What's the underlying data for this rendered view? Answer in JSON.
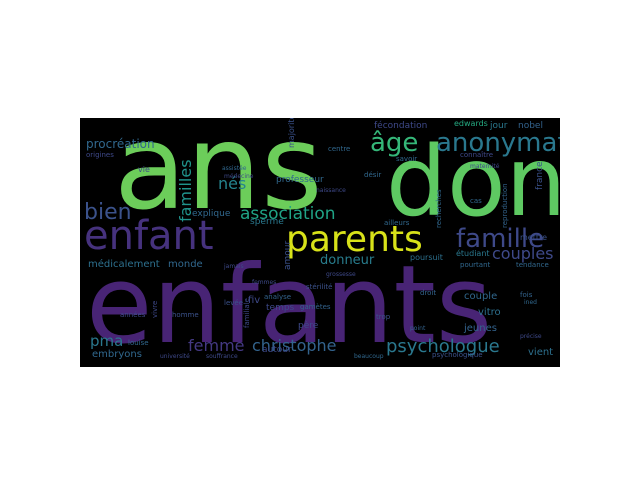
{
  "wordcloud": {
    "colors": {
      "background": "#000000",
      "page": "#ffffff"
    },
    "words": [
      {
        "text": "ans",
        "color": "#6ccd5a"
      },
      {
        "text": "enfants",
        "color": "#482475"
      },
      {
        "text": "don",
        "color": "#5ec962"
      },
      {
        "text": "enfant",
        "color": "#46327e"
      },
      {
        "text": "parents",
        "color": "#d8e219"
      },
      {
        "text": "anonymat",
        "color": "#2a788e"
      },
      {
        "text": "famille",
        "color": "#3e4989"
      },
      {
        "text": "bien",
        "color": "#3b528b"
      },
      {
        "text": "âge",
        "color": "#35b779"
      },
      {
        "text": "association",
        "color": "#20a386"
      },
      {
        "text": "femme",
        "color": "#443983"
      },
      {
        "text": "christophe",
        "color": "#33638d"
      },
      {
        "text": "psychologue",
        "color": "#2a788e"
      },
      {
        "text": "couples",
        "color": "#3e4989"
      },
      {
        "text": "donneur",
        "color": "#287d8e"
      },
      {
        "text": "familles",
        "color": "#20938c"
      },
      {
        "text": "nés",
        "color": "#25848e"
      },
      {
        "text": "pma",
        "color": "#2a788e"
      },
      {
        "text": "procréation",
        "color": "#31688e"
      },
      {
        "text": "médicalement",
        "color": "#2d708e"
      },
      {
        "text": "monde",
        "color": "#31688e"
      },
      {
        "text": "embryons",
        "color": "#31688e"
      },
      {
        "text": "fécondation",
        "color": "#3e4989"
      },
      {
        "text": "edwards",
        "color": "#25ab82"
      },
      {
        "text": "jour",
        "color": "#2a788e"
      },
      {
        "text": "nobel",
        "color": "#33638d"
      },
      {
        "text": "couple",
        "color": "#31688e"
      },
      {
        "text": "vitro",
        "color": "#2d708e"
      },
      {
        "text": "jeunes",
        "color": "#33638d"
      },
      {
        "text": "vient",
        "color": "#2d708e"
      },
      {
        "text": "mettre",
        "color": "#3b528b"
      },
      {
        "text": "professeur",
        "color": "#31688e"
      },
      {
        "text": "explique",
        "color": "#31688e"
      },
      {
        "text": "sperme",
        "color": "#2a788e"
      },
      {
        "text": "amour",
        "color": "#3b528b"
      },
      {
        "text": "fiv",
        "color": "#3e4989"
      },
      {
        "text": "père",
        "color": "#3e4989"
      },
      {
        "text": "temps",
        "color": "#3e4989"
      },
      {
        "text": "autour",
        "color": "#3e4989"
      },
      {
        "text": "poursuit",
        "color": "#2d708e"
      },
      {
        "text": "étudiant",
        "color": "#2a788e"
      },
      {
        "text": "pourtant",
        "color": "#31688e"
      },
      {
        "text": "tendance",
        "color": "#31688e"
      },
      {
        "text": "france",
        "color": "#3b528b"
      },
      {
        "text": "connaître",
        "color": "#3e4989"
      },
      {
        "text": "majorité",
        "color": "#3b528b"
      },
      {
        "text": "ailleurs",
        "color": "#31688e"
      },
      {
        "text": "désir",
        "color": "#31688e"
      },
      {
        "text": "savoir",
        "color": "#31688e"
      },
      {
        "text": "reproduction",
        "color": "#33638d"
      },
      {
        "text": "recherches",
        "color": "#31688e"
      },
      {
        "text": "centre",
        "color": "#31688e"
      },
      {
        "text": "origines",
        "color": "#3e4989"
      },
      {
        "text": "années",
        "color": "#3e4989"
      },
      {
        "text": "louise",
        "color": "#31688e"
      },
      {
        "text": "homme",
        "color": "#3b528b"
      },
      {
        "text": "levée",
        "color": "#3b528b"
      },
      {
        "text": "analyse",
        "color": "#33638d"
      },
      {
        "text": "stérilité",
        "color": "#3b528b"
      },
      {
        "text": "gamètes",
        "color": "#33638d"
      },
      {
        "text": "droit",
        "color": "#33638d"
      },
      {
        "text": "trop",
        "color": "#3b528b"
      },
      {
        "text": "point",
        "color": "#33638d"
      },
      {
        "text": "précise",
        "color": "#3e4989"
      },
      {
        "text": "fois",
        "color": "#33638d"
      },
      {
        "text": "ined",
        "color": "#31688e"
      },
      {
        "text": "cas",
        "color": "#31688e"
      },
      {
        "text": "psychologique",
        "color": "#3b528b"
      },
      {
        "text": "jamais",
        "color": "#3e4989"
      },
      {
        "text": "vivre",
        "color": "#3e4989"
      },
      {
        "text": "femmes",
        "color": "#3e4989"
      },
      {
        "text": "familiale",
        "color": "#3e4989"
      },
      {
        "text": "assistée",
        "color": "#31688e"
      },
      {
        "text": "médecine",
        "color": "#3e4989"
      },
      {
        "text": "maternité",
        "color": "#3e4989"
      },
      {
        "text": "vie",
        "color": "#3e4989"
      },
      {
        "text": "beaucoup",
        "color": "#31688e"
      },
      {
        "text": "université",
        "color": "#3e4989"
      },
      {
        "text": "souffrance",
        "color": "#3e4989"
      },
      {
        "text": "grossesse",
        "color": "#3e4989"
      },
      {
        "text": "naissance",
        "color": "#3e4989"
      }
    ]
  }
}
